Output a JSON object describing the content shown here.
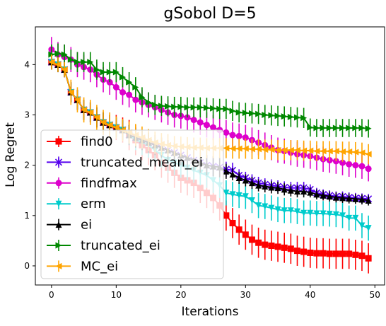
{
  "chart_data": {
    "type": "line",
    "title": "gSobol D=5",
    "xlabel": "Iterations",
    "ylabel": "Log Regret",
    "xlim": [
      -2.5,
      51.5
    ],
    "ylim": [
      -0.38,
      4.75
    ],
    "xticks": [
      0,
      10,
      20,
      30,
      40,
      50
    ],
    "yticks": [
      0,
      1,
      2,
      3,
      4
    ],
    "grid": false,
    "legend_position": "bottom-left",
    "x": [
      0,
      1,
      2,
      3,
      4,
      5,
      6,
      7,
      8,
      9,
      10,
      11,
      12,
      13,
      14,
      15,
      16,
      17,
      18,
      19,
      20,
      21,
      22,
      23,
      24,
      25,
      26,
      27,
      28,
      29,
      30,
      31,
      32,
      33,
      34,
      35,
      36,
      37,
      38,
      39,
      40,
      41,
      42,
      43,
      44,
      45,
      46,
      47,
      48,
      49
    ],
    "series": [
      {
        "name": "find0",
        "color": "#ff0000",
        "marker": "square",
        "values": [
          4.05,
          4.0,
          3.9,
          3.45,
          3.3,
          3.1,
          3.05,
          2.95,
          2.85,
          2.8,
          2.75,
          2.7,
          2.6,
          2.5,
          2.4,
          2.3,
          2.2,
          2.05,
          1.95,
          1.85,
          1.75,
          1.7,
          1.65,
          1.55,
          1.45,
          1.35,
          1.2,
          1.0,
          0.85,
          0.72,
          0.62,
          0.52,
          0.46,
          0.42,
          0.4,
          0.38,
          0.36,
          0.34,
          0.3,
          0.28,
          0.26,
          0.25,
          0.25,
          0.24,
          0.24,
          0.24,
          0.24,
          0.22,
          0.2,
          0.15
        ],
        "errors": [
          0.15,
          0.15,
          0.15,
          0.2,
          0.2,
          0.2,
          0.2,
          0.2,
          0.2,
          0.2,
          0.25,
          0.25,
          0.3,
          0.3,
          0.3,
          0.3,
          0.3,
          0.3,
          0.3,
          0.3,
          0.3,
          0.3,
          0.3,
          0.3,
          0.3,
          0.3,
          0.3,
          0.3,
          0.3,
          0.3,
          0.3,
          0.3,
          0.3,
          0.3,
          0.3,
          0.3,
          0.3,
          0.3,
          0.3,
          0.3,
          0.3,
          0.3,
          0.3,
          0.3,
          0.3,
          0.3,
          0.3,
          0.3,
          0.3,
          0.3
        ]
      },
      {
        "name": "truncated_mean_ei",
        "color": "#5500ee",
        "marker": "x",
        "values": [
          4.05,
          4.0,
          3.9,
          3.45,
          3.3,
          3.1,
          3.05,
          2.95,
          2.85,
          2.8,
          2.75,
          2.7,
          2.6,
          2.55,
          2.5,
          2.45,
          2.4,
          2.35,
          2.3,
          2.25,
          2.2,
          2.15,
          2.1,
          2.05,
          2.0,
          1.98,
          1.96,
          1.92,
          1.9,
          1.8,
          1.75,
          1.7,
          1.65,
          1.62,
          1.6,
          1.58,
          1.56,
          1.55,
          1.55,
          1.55,
          1.52,
          1.45,
          1.42,
          1.4,
          1.38,
          1.38,
          1.36,
          1.35,
          1.34,
          1.33
        ],
        "errors": [
          0.15,
          0.15,
          0.15,
          0.2,
          0.2,
          0.2,
          0.2,
          0.2,
          0.2,
          0.2,
          0.2,
          0.2,
          0.2,
          0.2,
          0.2,
          0.2,
          0.2,
          0.2,
          0.2,
          0.2,
          0.2,
          0.2,
          0.2,
          0.2,
          0.2,
          0.2,
          0.2,
          0.15,
          0.15,
          0.12,
          0.12,
          0.12,
          0.12,
          0.12,
          0.12,
          0.12,
          0.12,
          0.12,
          0.12,
          0.12,
          0.1,
          0.1,
          0.1,
          0.1,
          0.1,
          0.1,
          0.1,
          0.1,
          0.1,
          0.1
        ]
      },
      {
        "name": "findfmax",
        "color": "#dd00cc",
        "marker": "circle",
        "values": [
          4.3,
          4.2,
          4.15,
          4.1,
          4.0,
          3.95,
          3.9,
          3.8,
          3.7,
          3.65,
          3.55,
          3.45,
          3.4,
          3.3,
          3.25,
          3.2,
          3.15,
          3.1,
          3.05,
          3.0,
          2.98,
          2.95,
          2.9,
          2.85,
          2.8,
          2.75,
          2.7,
          2.65,
          2.6,
          2.58,
          2.55,
          2.5,
          2.45,
          2.4,
          2.35,
          2.3,
          2.28,
          2.25,
          2.22,
          2.2,
          2.18,
          2.15,
          2.12,
          2.1,
          2.08,
          2.05,
          2.02,
          2.0,
          1.98,
          1.93
        ],
        "errors": [
          0.25,
          0.25,
          0.25,
          0.25,
          0.25,
          0.25,
          0.25,
          0.25,
          0.25,
          0.25,
          0.25,
          0.25,
          0.25,
          0.25,
          0.25,
          0.25,
          0.25,
          0.25,
          0.25,
          0.25,
          0.25,
          0.25,
          0.25,
          0.25,
          0.25,
          0.25,
          0.25,
          0.25,
          0.25,
          0.25,
          0.25,
          0.25,
          0.25,
          0.25,
          0.25,
          0.25,
          0.25,
          0.25,
          0.25,
          0.25,
          0.25,
          0.25,
          0.25,
          0.25,
          0.25,
          0.25,
          0.25,
          0.25,
          0.25,
          0.25
        ]
      },
      {
        "name": "erm",
        "color": "#00cccc",
        "marker": "triangle-down",
        "values": [
          4.05,
          4.0,
          3.9,
          3.45,
          3.3,
          3.1,
          3.05,
          2.95,
          2.85,
          2.8,
          2.75,
          2.7,
          2.6,
          2.5,
          2.45,
          2.4,
          2.3,
          2.2,
          2.1,
          2.05,
          2.0,
          1.95,
          1.9,
          1.85,
          1.8,
          1.7,
          1.6,
          1.45,
          1.42,
          1.4,
          1.38,
          1.3,
          1.2,
          1.18,
          1.15,
          1.12,
          1.1,
          1.1,
          1.08,
          1.05,
          1.05,
          1.04,
          1.04,
          1.03,
          1.02,
          1.0,
          0.95,
          0.95,
          0.8,
          0.75
        ],
        "errors": [
          0.15,
          0.15,
          0.15,
          0.2,
          0.2,
          0.2,
          0.2,
          0.2,
          0.2,
          0.2,
          0.2,
          0.2,
          0.2,
          0.2,
          0.25,
          0.25,
          0.25,
          0.25,
          0.25,
          0.25,
          0.25,
          0.25,
          0.25,
          0.25,
          0.25,
          0.25,
          0.25,
          0.25,
          0.25,
          0.25,
          0.25,
          0.25,
          0.25,
          0.25,
          0.25,
          0.25,
          0.25,
          0.25,
          0.25,
          0.25,
          0.25,
          0.25,
          0.25,
          0.25,
          0.25,
          0.25,
          0.25,
          0.25,
          0.25,
          0.25
        ]
      },
      {
        "name": "ei",
        "color": "#000000",
        "marker": "triangle-up",
        "values": [
          4.05,
          4.0,
          3.9,
          3.45,
          3.3,
          3.1,
          3.05,
          2.95,
          2.85,
          2.8,
          2.75,
          2.7,
          2.6,
          2.55,
          2.5,
          2.45,
          2.4,
          2.35,
          2.3,
          2.25,
          2.2,
          2.15,
          2.1,
          2.05,
          2.0,
          1.98,
          1.96,
          1.88,
          1.82,
          1.75,
          1.7,
          1.65,
          1.6,
          1.58,
          1.56,
          1.55,
          1.52,
          1.5,
          1.48,
          1.48,
          1.46,
          1.42,
          1.4,
          1.38,
          1.36,
          1.35,
          1.34,
          1.33,
          1.32,
          1.3
        ],
        "errors": [
          0.15,
          0.15,
          0.15,
          0.2,
          0.2,
          0.2,
          0.2,
          0.2,
          0.2,
          0.2,
          0.2,
          0.2,
          0.2,
          0.2,
          0.2,
          0.2,
          0.2,
          0.2,
          0.2,
          0.2,
          0.2,
          0.2,
          0.2,
          0.2,
          0.2,
          0.2,
          0.2,
          0.15,
          0.12,
          0.12,
          0.12,
          0.12,
          0.12,
          0.12,
          0.12,
          0.12,
          0.12,
          0.12,
          0.12,
          0.12,
          0.1,
          0.1,
          0.1,
          0.1,
          0.1,
          0.1,
          0.1,
          0.1,
          0.1,
          0.1
        ]
      },
      {
        "name": "truncated_ei",
        "color": "#008800",
        "marker": "triangle-right",
        "values": [
          4.2,
          4.22,
          4.2,
          4.1,
          4.05,
          4.05,
          4.05,
          3.9,
          3.85,
          3.85,
          3.85,
          3.75,
          3.65,
          3.55,
          3.35,
          3.25,
          3.2,
          3.18,
          3.17,
          3.16,
          3.16,
          3.15,
          3.15,
          3.15,
          3.14,
          3.13,
          3.12,
          3.12,
          3.08,
          3.05,
          3.04,
          3.03,
          3.02,
          3.0,
          2.99,
          2.98,
          2.97,
          2.96,
          2.95,
          2.94,
          2.75,
          2.74,
          2.74,
          2.74,
          2.74,
          2.74,
          2.74,
          2.74,
          2.74,
          2.73
        ],
        "errors": [
          0.2,
          0.2,
          0.2,
          0.2,
          0.2,
          0.2,
          0.2,
          0.2,
          0.2,
          0.2,
          0.2,
          0.2,
          0.2,
          0.2,
          0.2,
          0.2,
          0.2,
          0.2,
          0.2,
          0.2,
          0.2,
          0.2,
          0.2,
          0.2,
          0.2,
          0.2,
          0.2,
          0.2,
          0.2,
          0.2,
          0.2,
          0.2,
          0.2,
          0.2,
          0.2,
          0.2,
          0.2,
          0.2,
          0.2,
          0.2,
          0.18,
          0.18,
          0.18,
          0.18,
          0.18,
          0.18,
          0.18,
          0.18,
          0.18,
          0.18
        ]
      },
      {
        "name": "MC_ei",
        "color": "#ffa500",
        "marker": "triangle-left",
        "values": [
          4.05,
          4.0,
          3.9,
          3.45,
          3.3,
          3.1,
          3.05,
          2.95,
          2.85,
          2.8,
          2.75,
          2.7,
          2.65,
          2.6,
          2.55,
          2.5,
          2.45,
          2.42,
          2.4,
          2.38,
          2.37,
          2.36,
          2.35,
          2.35,
          2.34,
          2.34,
          2.34,
          2.34,
          2.33,
          2.33,
          2.33,
          2.32,
          2.32,
          2.31,
          2.31,
          2.3,
          2.3,
          2.3,
          2.3,
          2.29,
          2.29,
          2.28,
          2.28,
          2.28,
          2.28,
          2.27,
          2.27,
          2.26,
          2.25,
          2.22
        ],
        "errors": [
          0.15,
          0.15,
          0.15,
          0.25,
          0.25,
          0.25,
          0.25,
          0.25,
          0.25,
          0.25,
          0.22,
          0.22,
          0.22,
          0.22,
          0.22,
          0.22,
          0.22,
          0.22,
          0.22,
          0.2,
          0.2,
          0.2,
          0.2,
          0.2,
          0.2,
          0.2,
          0.2,
          0.2,
          0.2,
          0.2,
          0.2,
          0.2,
          0.2,
          0.2,
          0.2,
          0.2,
          0.2,
          0.2,
          0.2,
          0.2,
          0.2,
          0.2,
          0.2,
          0.2,
          0.2,
          0.2,
          0.2,
          0.2,
          0.2,
          0.2
        ]
      }
    ]
  }
}
